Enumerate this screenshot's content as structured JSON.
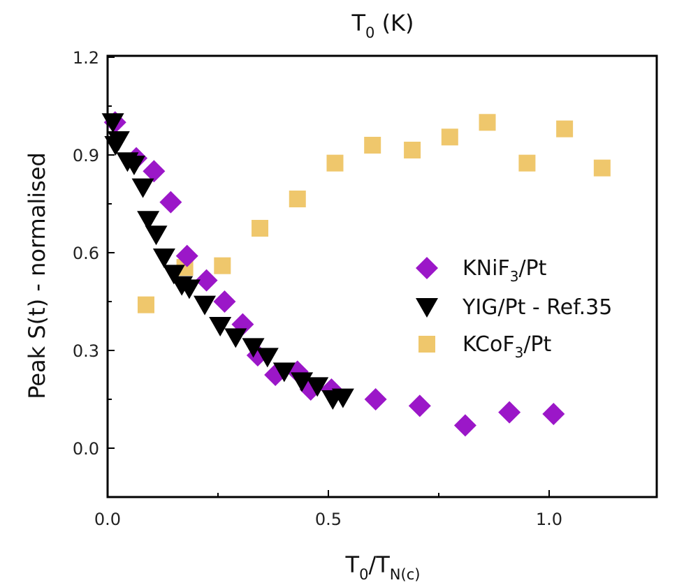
{
  "chart_data": {
    "type": "scatter",
    "top_axis_label": {
      "base": "T",
      "sub": "0",
      "rest": " (K)"
    },
    "xlabel": {
      "t1": "T",
      "s1": "0",
      "mid": "/T",
      "s2": "N(c)"
    },
    "ylabel": "Peak S(t) - normalised",
    "xlim": [
      0.0,
      1.24
    ],
    "ylim": [
      -0.15,
      1.2
    ],
    "xticks": [
      "0.0",
      "0.5",
      "1.0"
    ],
    "xtick_values": [
      0.0,
      0.5,
      1.0
    ],
    "yticks": [
      "0.0",
      "0.3",
      "0.6",
      "0.9",
      "1.2"
    ],
    "ytick_values": [
      0.0,
      0.3,
      0.6,
      0.9,
      1.2
    ],
    "legend_position": "middle-right",
    "series": [
      {
        "name": "KNiF3/Pt",
        "legend": {
          "a": "KNiF",
          "sub": "3",
          "b": "/Pt"
        },
        "marker": "diamond",
        "color": "#9b17c8",
        "x": [
          0.017,
          0.065,
          0.105,
          0.143,
          0.18,
          0.224,
          0.265,
          0.306,
          0.34,
          0.38,
          0.43,
          0.46,
          0.507,
          0.607,
          0.707,
          0.81,
          0.91,
          1.01
        ],
        "y": [
          1.0,
          0.89,
          0.85,
          0.755,
          0.59,
          0.515,
          0.45,
          0.38,
          0.285,
          0.225,
          0.235,
          0.18,
          0.18,
          0.15,
          0.13,
          0.07,
          0.11,
          0.105
        ]
      },
      {
        "name": "YIG/Pt - Ref.35",
        "legend": {
          "a": "YIG/Pt - Ref.35",
          "sub": "",
          "b": ""
        },
        "marker": "triangle-down",
        "color": "#000000",
        "x": [
          0.012,
          0.018,
          0.025,
          0.045,
          0.06,
          0.08,
          0.092,
          0.11,
          0.128,
          0.15,
          0.168,
          0.185,
          0.22,
          0.255,
          0.29,
          0.33,
          0.362,
          0.4,
          0.44,
          0.475,
          0.51,
          0.533
        ],
        "y": [
          1.0,
          0.93,
          0.945,
          0.88,
          0.87,
          0.8,
          0.7,
          0.655,
          0.585,
          0.535,
          0.5,
          0.49,
          0.44,
          0.375,
          0.34,
          0.31,
          0.28,
          0.235,
          0.205,
          0.19,
          0.15,
          0.155
        ]
      },
      {
        "name": "KCoF3/Pt",
        "legend": {
          "a": "KCoF",
          "sub": "3",
          "b": "/Pt"
        },
        "marker": "square",
        "color": "#efc76c",
        "x": [
          0.087,
          0.175,
          0.26,
          0.345,
          0.43,
          0.515,
          0.6,
          0.69,
          0.775,
          0.86,
          0.95,
          1.035,
          1.12
        ],
        "y": [
          0.44,
          0.555,
          0.56,
          0.675,
          0.765,
          0.875,
          0.93,
          0.915,
          0.955,
          1.0,
          0.875,
          0.98,
          0.86
        ]
      }
    ]
  }
}
